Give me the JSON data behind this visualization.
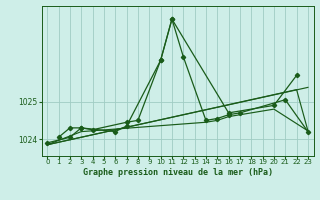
{
  "bg_color": "#ceeee8",
  "grid_color": "#a0ccc4",
  "line_color": "#1a5c1a",
  "xlabel": "Graphe pression niveau de la mer (hPa)",
  "xlim": [
    -0.5,
    23.5
  ],
  "ylim": [
    1023.55,
    1027.55
  ],
  "ytick_values": [
    1024,
    1025
  ],
  "xtick_values": [
    0,
    1,
    2,
    3,
    4,
    5,
    6,
    7,
    8,
    9,
    10,
    11,
    12,
    13,
    14,
    15,
    16,
    17,
    18,
    19,
    20,
    21,
    22,
    23
  ],
  "main_series": {
    "x": [
      0,
      2,
      3,
      4,
      7,
      8,
      10,
      11,
      12,
      14,
      15,
      16,
      17,
      21,
      23
    ],
    "y": [
      1023.9,
      1024.05,
      1024.3,
      1024.25,
      1024.45,
      1024.5,
      1026.1,
      1027.2,
      1026.2,
      1024.5,
      1024.55,
      1024.65,
      1024.7,
      1025.05,
      1024.2
    ]
  },
  "line2": {
    "x": [
      1,
      2,
      3,
      6,
      7,
      10,
      11,
      16,
      20,
      22
    ],
    "y": [
      1024.05,
      1024.3,
      1024.3,
      1024.2,
      1024.35,
      1026.1,
      1027.2,
      1024.7,
      1024.9,
      1025.7
    ]
  },
  "trend_lines": [
    {
      "x": [
        0,
        3,
        14,
        15,
        16,
        17,
        18,
        20,
        23
      ],
      "y": [
        1023.85,
        1024.2,
        1024.45,
        1024.5,
        1024.6,
        1024.65,
        1024.7,
        1024.8,
        1024.22
      ]
    },
    {
      "x": [
        0,
        23
      ],
      "y": [
        1023.85,
        1025.38
      ]
    },
    {
      "x": [
        0,
        22,
        23
      ],
      "y": [
        1023.85,
        1025.32,
        1024.22
      ]
    }
  ]
}
